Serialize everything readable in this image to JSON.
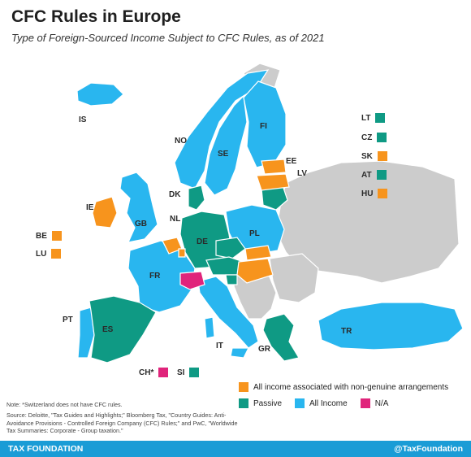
{
  "title": "CFC Rules in Europe",
  "subtitle": "Type of Foreign-Sourced Income Subject to CFC Rules, as of 2021",
  "colors": {
    "non_genuine": "#f7941d",
    "passive": "#0f9a84",
    "all_income": "#29b6ef",
    "na": "#e0247b",
    "no_data": "#cccccc"
  },
  "countries": {
    "IS": "IS",
    "NO": "NO",
    "SE": "SE",
    "FI": "FI",
    "EE": "EE",
    "LV": "LV",
    "DK": "DK",
    "IE": "IE",
    "GB": "GB",
    "NL": "NL",
    "DE": "DE",
    "PL": "PL",
    "FR": "FR",
    "PT": "PT",
    "ES": "ES",
    "IT": "IT",
    "GR": "GR",
    "TR": "TR"
  },
  "side_labels": {
    "LT": "LT",
    "CZ": "CZ",
    "SK": "SK",
    "AT": "AT",
    "HU": "HU",
    "BE": "BE",
    "LU": "LU",
    "CH": "CH*",
    "SI": "SI"
  },
  "legend": {
    "non_genuine": "All income associated with non-genuine arrangements",
    "passive": "Passive",
    "all_income": "All Income",
    "na": "N/A"
  },
  "note": "Note: *Switzerland does not have CFC rules.",
  "source": "Source: Deloitte, \"Tax Guides and Highlights;\" Bloomberg Tax, \"Country Guides: Anti-Avoidance Provisions - Controlled Foreign Company (CFC) Rules;\" and PwC, \"Worldwide Tax Summaries: Corporate - Group taxation.\"",
  "footer": {
    "brand": "TAX FOUNDATION",
    "handle": "@TaxFoundation"
  }
}
